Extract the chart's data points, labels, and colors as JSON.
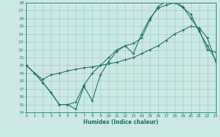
{
  "xlabel": "Humidex (Indice chaleur)",
  "bg_color": "#cce8e4",
  "line_color": "#1a6e68",
  "grid_color": "#99cccc",
  "xlim": [
    0,
    23
  ],
  "ylim": [
    14,
    28
  ],
  "yticks": [
    14,
    15,
    16,
    17,
    18,
    19,
    20,
    21,
    22,
    23,
    24,
    25,
    26,
    27,
    28
  ],
  "xticks": [
    0,
    1,
    2,
    3,
    4,
    5,
    6,
    7,
    8,
    9,
    10,
    11,
    12,
    13,
    14,
    15,
    16,
    17,
    18,
    19,
    20,
    21,
    22,
    23
  ],
  "line1_x": [
    0,
    1,
    2,
    3,
    4,
    5,
    6,
    7,
    8,
    9,
    10,
    11,
    12,
    13,
    14,
    15,
    16,
    17,
    18,
    19,
    20,
    21,
    22,
    23
  ],
  "line1_y": [
    20.0,
    19.0,
    17.8,
    16.5,
    15.0,
    15.0,
    14.4,
    17.3,
    15.5,
    18.8,
    20.5,
    21.8,
    22.5,
    21.5,
    24.0,
    26.0,
    27.3,
    27.7,
    28.0,
    27.4,
    26.5,
    24.3,
    22.5,
    20.7
  ],
  "line2_x": [
    0,
    1,
    2,
    3,
    4,
    5,
    6,
    7,
    8,
    9,
    10,
    11,
    12,
    13,
    14,
    15,
    16,
    17,
    18,
    19,
    20,
    21,
    22,
    23
  ],
  "line2_y": [
    20.0,
    19.0,
    18.2,
    18.8,
    19.0,
    19.3,
    19.5,
    19.7,
    19.8,
    20.0,
    20.2,
    20.4,
    20.7,
    21.0,
    21.5,
    22.0,
    22.5,
    23.2,
    24.0,
    24.5,
    25.0,
    24.8,
    23.5,
    20.5
  ],
  "line3_x": [
    0,
    1,
    2,
    3,
    4,
    5,
    6,
    7,
    8,
    9,
    10,
    11,
    12,
    13,
    14,
    15,
    16,
    17,
    18,
    19,
    20,
    21,
    22,
    23
  ],
  "line3_y": [
    20.0,
    19.0,
    17.8,
    16.5,
    15.0,
    15.0,
    15.3,
    17.5,
    19.0,
    20.0,
    21.0,
    22.0,
    22.5,
    22.8,
    23.5,
    25.8,
    27.5,
    28.2,
    28.3,
    27.5,
    26.0,
    24.5,
    22.0,
    21.7
  ]
}
